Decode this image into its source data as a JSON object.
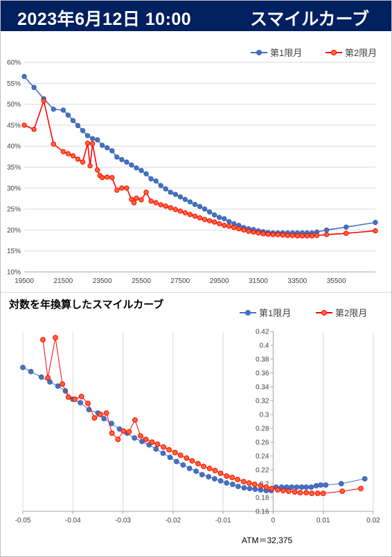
{
  "header": {
    "date": "2023年6月12日 10:00",
    "title": "スマイルカーブ"
  },
  "charts": {
    "chart2_title": "対数を年換算したスマイルカーブ",
    "atm_label": "ATM＝32,375"
  },
  "colors": {
    "series1": "#4472c4",
    "series2": "#ff0000",
    "header_bg": "#002060"
  },
  "chart_data": [
    {
      "type": "line",
      "title": "",
      "xlabel": "",
      "ylabel": "",
      "xlim": [
        19500,
        37500
      ],
      "ylim": [
        0.1,
        0.6
      ],
      "xticks": [
        19500,
        21500,
        23500,
        25500,
        27500,
        29500,
        31500,
        33500,
        35500
      ],
      "xtick_labels": [
        "19500",
        "21500",
        "23500",
        "25500",
        "27500",
        "29500",
        "31500",
        "33500",
        "35500"
      ],
      "yticks": [
        0.1,
        0.15,
        0.2,
        0.25,
        0.3,
        0.35,
        0.4,
        0.45,
        0.5,
        0.55,
        0.6
      ],
      "ytick_labels": [
        "10%",
        "15%",
        "20%",
        "25%",
        "30%",
        "35%",
        "40%",
        "45%",
        "50%",
        "55%",
        "60%"
      ],
      "grid": "horizontal",
      "legend": "top-right",
      "series": [
        {
          "name": "第1限月",
          "x": [
            19500,
            20000,
            20500,
            21000,
            21500,
            21750,
            22000,
            22250,
            22500,
            22750,
            23000,
            23250,
            23500,
            23750,
            24000,
            24250,
            24500,
            24750,
            25000,
            25250,
            25500,
            25750,
            26000,
            26250,
            26500,
            26750,
            27000,
            27250,
            27500,
            27750,
            28000,
            28250,
            28500,
            28750,
            29000,
            29250,
            29500,
            29750,
            30000,
            30250,
            30500,
            30750,
            31000,
            31250,
            31500,
            31750,
            32000,
            32250,
            32500,
            32750,
            33000,
            33250,
            33500,
            33750,
            34000,
            34250,
            34500,
            35000,
            36000,
            37500
          ],
          "y": [
            0.566,
            0.54,
            0.513,
            0.488,
            0.486,
            0.474,
            0.461,
            0.449,
            0.437,
            0.425,
            0.418,
            0.415,
            0.402,
            0.396,
            0.389,
            0.374,
            0.368,
            0.362,
            0.355,
            0.348,
            0.342,
            0.334,
            0.322,
            0.317,
            0.306,
            0.298,
            0.29,
            0.285,
            0.279,
            0.273,
            0.267,
            0.261,
            0.256,
            0.25,
            0.243,
            0.236,
            0.23,
            0.227,
            0.22,
            0.215,
            0.211,
            0.206,
            0.203,
            0.201,
            0.198,
            0.196,
            0.194,
            0.193,
            0.193,
            0.193,
            0.193,
            0.193,
            0.193,
            0.193,
            0.193,
            0.193,
            0.195,
            0.2,
            0.207,
            0.218
          ]
        },
        {
          "name": "第2限月",
          "x": [
            19500,
            20000,
            20500,
            21000,
            21500,
            21750,
            22000,
            22250,
            22500,
            22750,
            22875,
            23000,
            23250,
            23375,
            23500,
            23750,
            24000,
            24250,
            24500,
            24750,
            25000,
            25125,
            25250,
            25500,
            25750,
            26000,
            26250,
            26500,
            26750,
            27000,
            27250,
            27500,
            27750,
            28000,
            28250,
            28500,
            28750,
            29000,
            29250,
            29500,
            29750,
            30000,
            30250,
            30500,
            30750,
            31000,
            31250,
            31500,
            31750,
            32000,
            32250,
            32500,
            32750,
            33000,
            33250,
            33500,
            33750,
            34000,
            34250,
            34500,
            35000,
            36000,
            37500
          ],
          "y": [
            0.45,
            0.44,
            0.508,
            0.405,
            0.387,
            0.382,
            0.377,
            0.369,
            0.362,
            0.407,
            0.353,
            0.406,
            0.343,
            0.33,
            0.325,
            0.326,
            0.325,
            0.295,
            0.3,
            0.3,
            0.273,
            0.265,
            0.276,
            0.272,
            0.29,
            0.269,
            0.265,
            0.26,
            0.257,
            0.253,
            0.249,
            0.245,
            0.241,
            0.237,
            0.233,
            0.229,
            0.225,
            0.222,
            0.219,
            0.215,
            0.211,
            0.209,
            0.206,
            0.203,
            0.2,
            0.197,
            0.195,
            0.193,
            0.191,
            0.19,
            0.189,
            0.189,
            0.188,
            0.187,
            0.187,
            0.186,
            0.186,
            0.186,
            0.186,
            0.187,
            0.189,
            0.192,
            0.198
          ]
        }
      ]
    },
    {
      "type": "scatter",
      "title": "対数を年換算したスマイルカーブ",
      "xlabel": "",
      "ylabel": "",
      "xlim": [
        -0.05,
        0.02
      ],
      "ylim": [
        0.16,
        0.42
      ],
      "xticks": [
        -0.05,
        -0.04,
        -0.03,
        -0.02,
        -0.01,
        0,
        0.01,
        0.02
      ],
      "xtick_labels": [
        "-0.05",
        "-0.04",
        "-0.03",
        "-0.02",
        "-0.01",
        "0",
        "0.01",
        "0.02"
      ],
      "yticks": [
        0.16,
        0.18,
        0.2,
        0.22,
        0.24,
        0.26,
        0.28,
        0.3,
        0.32,
        0.34,
        0.36,
        0.38,
        0.4,
        0.42
      ],
      "ytick_labels": [
        "0.16",
        "0.18",
        "0.2",
        "0.22",
        "0.24",
        "0.26",
        "0.28",
        "0.3",
        "0.32",
        "0.34",
        "0.36",
        "0.38",
        "0.4",
        "0.42"
      ],
      "grid": "vertical",
      "legend": "top-right",
      "annotation": "ATM＝32,375",
      "series": [
        {
          "name": "第1限月",
          "x": [
            -0.05,
            -0.0484,
            -0.0463,
            -0.0446,
            -0.043,
            -0.0415,
            -0.04,
            -0.0385,
            -0.0368,
            -0.035,
            -0.0338,
            -0.0323,
            -0.0307,
            -0.0292,
            -0.0277,
            -0.0262,
            -0.0248,
            -0.0234,
            -0.022,
            -0.0206,
            -0.0193,
            -0.018,
            -0.0167,
            -0.0154,
            -0.0142,
            -0.0129,
            -0.0117,
            -0.0105,
            -0.0093,
            -0.0081,
            -0.007,
            -0.0058,
            -0.0047,
            -0.0036,
            -0.0025,
            -0.0014,
            -0.0004,
            0.0006,
            0.0017,
            0.0027,
            0.0037,
            0.0047,
            0.0057,
            0.0066,
            0.0076,
            0.0086,
            0.0095,
            0.0105,
            0.0136,
            0.0183
          ],
          "y": [
            0.368,
            0.362,
            0.354,
            0.347,
            0.341,
            0.334,
            0.322,
            0.317,
            0.307,
            0.302,
            0.294,
            0.287,
            0.279,
            0.273,
            0.266,
            0.261,
            0.256,
            0.25,
            0.244,
            0.238,
            0.232,
            0.227,
            0.222,
            0.218,
            0.213,
            0.21,
            0.207,
            0.204,
            0.201,
            0.199,
            0.196,
            0.194,
            0.193,
            0.192,
            0.191,
            0.19,
            0.19,
            0.195,
            0.195,
            0.195,
            0.195,
            0.195,
            0.195,
            0.195,
            0.195,
            0.197,
            0.198,
            0.198,
            0.2,
            0.207
          ]
        },
        {
          "name": "第2限月",
          "x": [
            -0.046,
            -0.045,
            -0.0435,
            -0.0421,
            -0.0409,
            -0.0396,
            -0.0383,
            -0.037,
            -0.0357,
            -0.0345,
            -0.0333,
            -0.0322,
            -0.031,
            -0.0299,
            -0.0288,
            -0.0276,
            -0.0265,
            -0.0254,
            -0.0242,
            -0.0231,
            -0.0219,
            -0.0208,
            -0.0196,
            -0.0185,
            -0.0173,
            -0.0162,
            -0.015,
            -0.0139,
            -0.0127,
            -0.0116,
            -0.0105,
            -0.0093,
            -0.0082,
            -0.0071,
            -0.0059,
            -0.0048,
            -0.0037,
            -0.0025,
            -0.0014,
            -0.0003,
            0.0009,
            0.002,
            0.0031,
            0.0043,
            0.0054,
            0.0066,
            0.0077,
            0.0089,
            0.01,
            0.0138,
            0.0175
          ],
          "y": [
            0.408,
            0.353,
            0.411,
            0.344,
            0.325,
            0.322,
            0.326,
            0.316,
            0.295,
            0.3,
            0.302,
            0.273,
            0.264,
            0.276,
            0.275,
            0.292,
            0.269,
            0.264,
            0.26,
            0.257,
            0.253,
            0.249,
            0.245,
            0.241,
            0.237,
            0.233,
            0.229,
            0.225,
            0.222,
            0.219,
            0.215,
            0.211,
            0.209,
            0.206,
            0.203,
            0.201,
            0.199,
            0.197,
            0.195,
            0.193,
            0.191,
            0.19,
            0.189,
            0.188,
            0.187,
            0.187,
            0.186,
            0.186,
            0.186,
            0.189,
            0.193
          ]
        }
      ]
    }
  ]
}
